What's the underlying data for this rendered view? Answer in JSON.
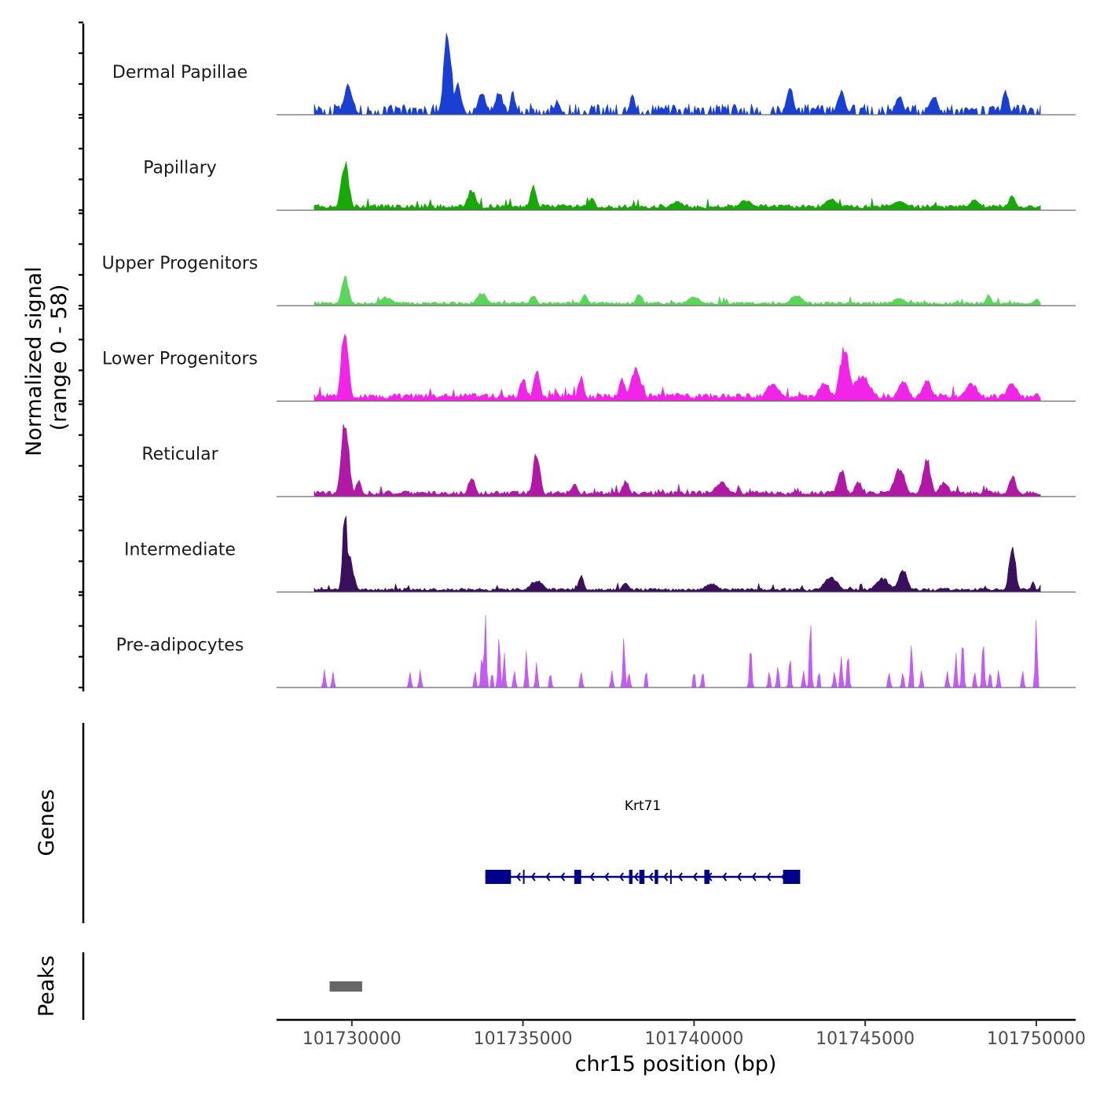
{
  "chart_data": {
    "type": "area",
    "title": "",
    "chromosome": "chr15",
    "xlabel": "chr15 position (bp)",
    "ylabel_line1": "Normalized signal",
    "ylabel_line2": "(range 0 - 58)",
    "ylim": [
      0,
      58
    ],
    "xlim": [
      101727800,
      101751150
    ],
    "data_start": 101728900,
    "data_end": 101750120,
    "xticks": [
      101730000,
      101735000,
      101740000,
      101745000,
      101750000
    ],
    "xtick_labels": [
      "101730000",
      "101735000",
      "101740000",
      "101745000",
      "101750000"
    ],
    "series": [
      {
        "name": "Dermal Papillae",
        "color": "#1a3fd4",
        "style": "sparse",
        "background": 4,
        "peaks": [
          [
            101729900,
            21,
            120
          ],
          [
            101732800,
            58,
            110
          ],
          [
            101733100,
            22,
            100
          ],
          [
            101733800,
            15,
            120
          ],
          [
            101734300,
            16,
            110
          ],
          [
            101734700,
            18,
            60
          ],
          [
            101736000,
            10,
            80
          ],
          [
            101738200,
            14,
            80
          ],
          [
            101742800,
            22,
            90
          ],
          [
            101744300,
            16,
            110
          ],
          [
            101746000,
            14,
            100
          ],
          [
            101747000,
            14,
            110
          ],
          [
            101749100,
            18,
            80
          ]
        ]
      },
      {
        "name": "Papillary",
        "color": "#18a808",
        "style": "continuous",
        "background": 3,
        "peaks": [
          [
            101729800,
            34,
            110
          ],
          [
            101733500,
            14,
            130
          ],
          [
            101735300,
            17,
            90
          ],
          [
            101737000,
            9,
            100
          ],
          [
            101739500,
            6,
            200
          ],
          [
            101741500,
            7,
            200
          ],
          [
            101744000,
            8,
            200
          ],
          [
            101746000,
            7,
            200
          ],
          [
            101748200,
            8,
            150
          ],
          [
            101749300,
            10,
            110
          ]
        ]
      },
      {
        "name": "Upper Progenitors",
        "color": "#5ad65a",
        "style": "continuous",
        "background": 2,
        "peaks": [
          [
            101729800,
            22,
            100
          ],
          [
            101731000,
            6,
            200
          ],
          [
            101733800,
            9,
            150
          ],
          [
            101735300,
            7,
            100
          ],
          [
            101736800,
            9,
            80
          ],
          [
            101738400,
            8,
            100
          ],
          [
            101740000,
            6,
            200
          ],
          [
            101743000,
            7,
            200
          ],
          [
            101746000,
            5,
            200
          ],
          [
            101748600,
            8,
            80
          ],
          [
            101750000,
            5,
            80
          ]
        ]
      },
      {
        "name": "Lower Progenitors",
        "color": "#f224e8",
        "style": "continuous",
        "background": 4,
        "peaks": [
          [
            101729800,
            54,
            100
          ],
          [
            101735000,
            16,
            100
          ],
          [
            101735400,
            24,
            90
          ],
          [
            101736700,
            18,
            80
          ],
          [
            101737900,
            15,
            100
          ],
          [
            101738300,
            22,
            160
          ],
          [
            101742300,
            12,
            200
          ],
          [
            101743800,
            14,
            160
          ],
          [
            101744400,
            38,
            140
          ],
          [
            101744900,
            18,
            250
          ],
          [
            101746100,
            15,
            150
          ],
          [
            101746800,
            14,
            150
          ],
          [
            101748100,
            12,
            200
          ],
          [
            101749300,
            13,
            160
          ]
        ]
      },
      {
        "name": "Reticular",
        "color": "#b118a6",
        "style": "continuous",
        "background": 3,
        "peaks": [
          [
            101729800,
            54,
            110
          ],
          [
            101730200,
            12,
            80
          ],
          [
            101733500,
            14,
            100
          ],
          [
            101735400,
            31,
            100
          ],
          [
            101736500,
            9,
            100
          ],
          [
            101738000,
            11,
            100
          ],
          [
            101740800,
            10,
            200
          ],
          [
            101744300,
            20,
            110
          ],
          [
            101744800,
            11,
            110
          ],
          [
            101746000,
            20,
            160
          ],
          [
            101746800,
            26,
            120
          ],
          [
            101747300,
            10,
            150
          ],
          [
            101749300,
            15,
            100
          ]
        ]
      },
      {
        "name": "Intermediate",
        "color": "#3a0f5e",
        "style": "continuous",
        "background": 2,
        "peaks": [
          [
            101729800,
            58,
            70
          ],
          [
            101729900,
            26,
            130
          ],
          [
            101735400,
            8,
            200
          ],
          [
            101736700,
            12,
            80
          ],
          [
            101738000,
            7,
            100
          ],
          [
            101740500,
            6,
            200
          ],
          [
            101744000,
            11,
            200
          ],
          [
            101745500,
            10,
            200
          ],
          [
            101746100,
            16,
            130
          ],
          [
            101749300,
            34,
            90
          ],
          [
            101749900,
            7,
            60
          ]
        ]
      },
      {
        "name": "Pre-adipocytes",
        "color": "#c25cf8",
        "style": "spikes",
        "background": 0,
        "peaks": [
          [
            101729200,
            12,
            30
          ],
          [
            101729450,
            12,
            30
          ],
          [
            101731700,
            12,
            30
          ],
          [
            101732000,
            12,
            30
          ],
          [
            101733600,
            12,
            30
          ],
          [
            101733800,
            25,
            30
          ],
          [
            101733900,
            58,
            28
          ],
          [
            101734100,
            12,
            30
          ],
          [
            101734300,
            38,
            30
          ],
          [
            101734450,
            24,
            30
          ],
          [
            101734750,
            12,
            30
          ],
          [
            101735100,
            30,
            28
          ],
          [
            101735400,
            18,
            30
          ],
          [
            101735800,
            12,
            30
          ],
          [
            101736700,
            12,
            30
          ],
          [
            101737600,
            12,
            30
          ],
          [
            101737950,
            34,
            30
          ],
          [
            101738100,
            12,
            30
          ],
          [
            101738600,
            12,
            30
          ],
          [
            101740000,
            12,
            30
          ],
          [
            101740250,
            12,
            30
          ],
          [
            101741650,
            34,
            30
          ],
          [
            101742200,
            12,
            30
          ],
          [
            101742450,
            18,
            30
          ],
          [
            101742800,
            22,
            30
          ],
          [
            101743200,
            12,
            30
          ],
          [
            101743400,
            48,
            28
          ],
          [
            101743650,
            12,
            30
          ],
          [
            101744100,
            12,
            30
          ],
          [
            101744300,
            24,
            30
          ],
          [
            101744500,
            26,
            30
          ],
          [
            101745700,
            12,
            30
          ],
          [
            101746100,
            12,
            30
          ],
          [
            101746350,
            34,
            30
          ],
          [
            101746650,
            12,
            30
          ],
          [
            101747400,
            12,
            30
          ],
          [
            101747650,
            24,
            30
          ],
          [
            101747850,
            38,
            30
          ],
          [
            101748200,
            12,
            30
          ],
          [
            101748450,
            36,
            30
          ],
          [
            101748650,
            12,
            30
          ],
          [
            101748900,
            12,
            30
          ],
          [
            101749600,
            12,
            30
          ],
          [
            101750000,
            50,
            28
          ]
        ]
      }
    ],
    "genes": [
      {
        "name": "Krt71",
        "strand": "-",
        "color": "#00008b",
        "start": 101733900,
        "end": 101743100,
        "exons": [
          [
            101733900,
            101734650
          ],
          [
            101735000,
            101735030
          ],
          [
            101736500,
            101736700
          ],
          [
            101738100,
            101738200
          ],
          [
            101738400,
            101738550
          ],
          [
            101738850,
            101738950
          ],
          [
            101739300,
            101739340
          ],
          [
            101740300,
            101740450
          ],
          [
            101742600,
            101743100
          ]
        ]
      }
    ],
    "peaks_track_label": "Peaks",
    "genes_track_label": "Genes",
    "peaks": [
      {
        "start": 101729350,
        "end": 101730300,
        "color": "#666666"
      }
    ]
  }
}
